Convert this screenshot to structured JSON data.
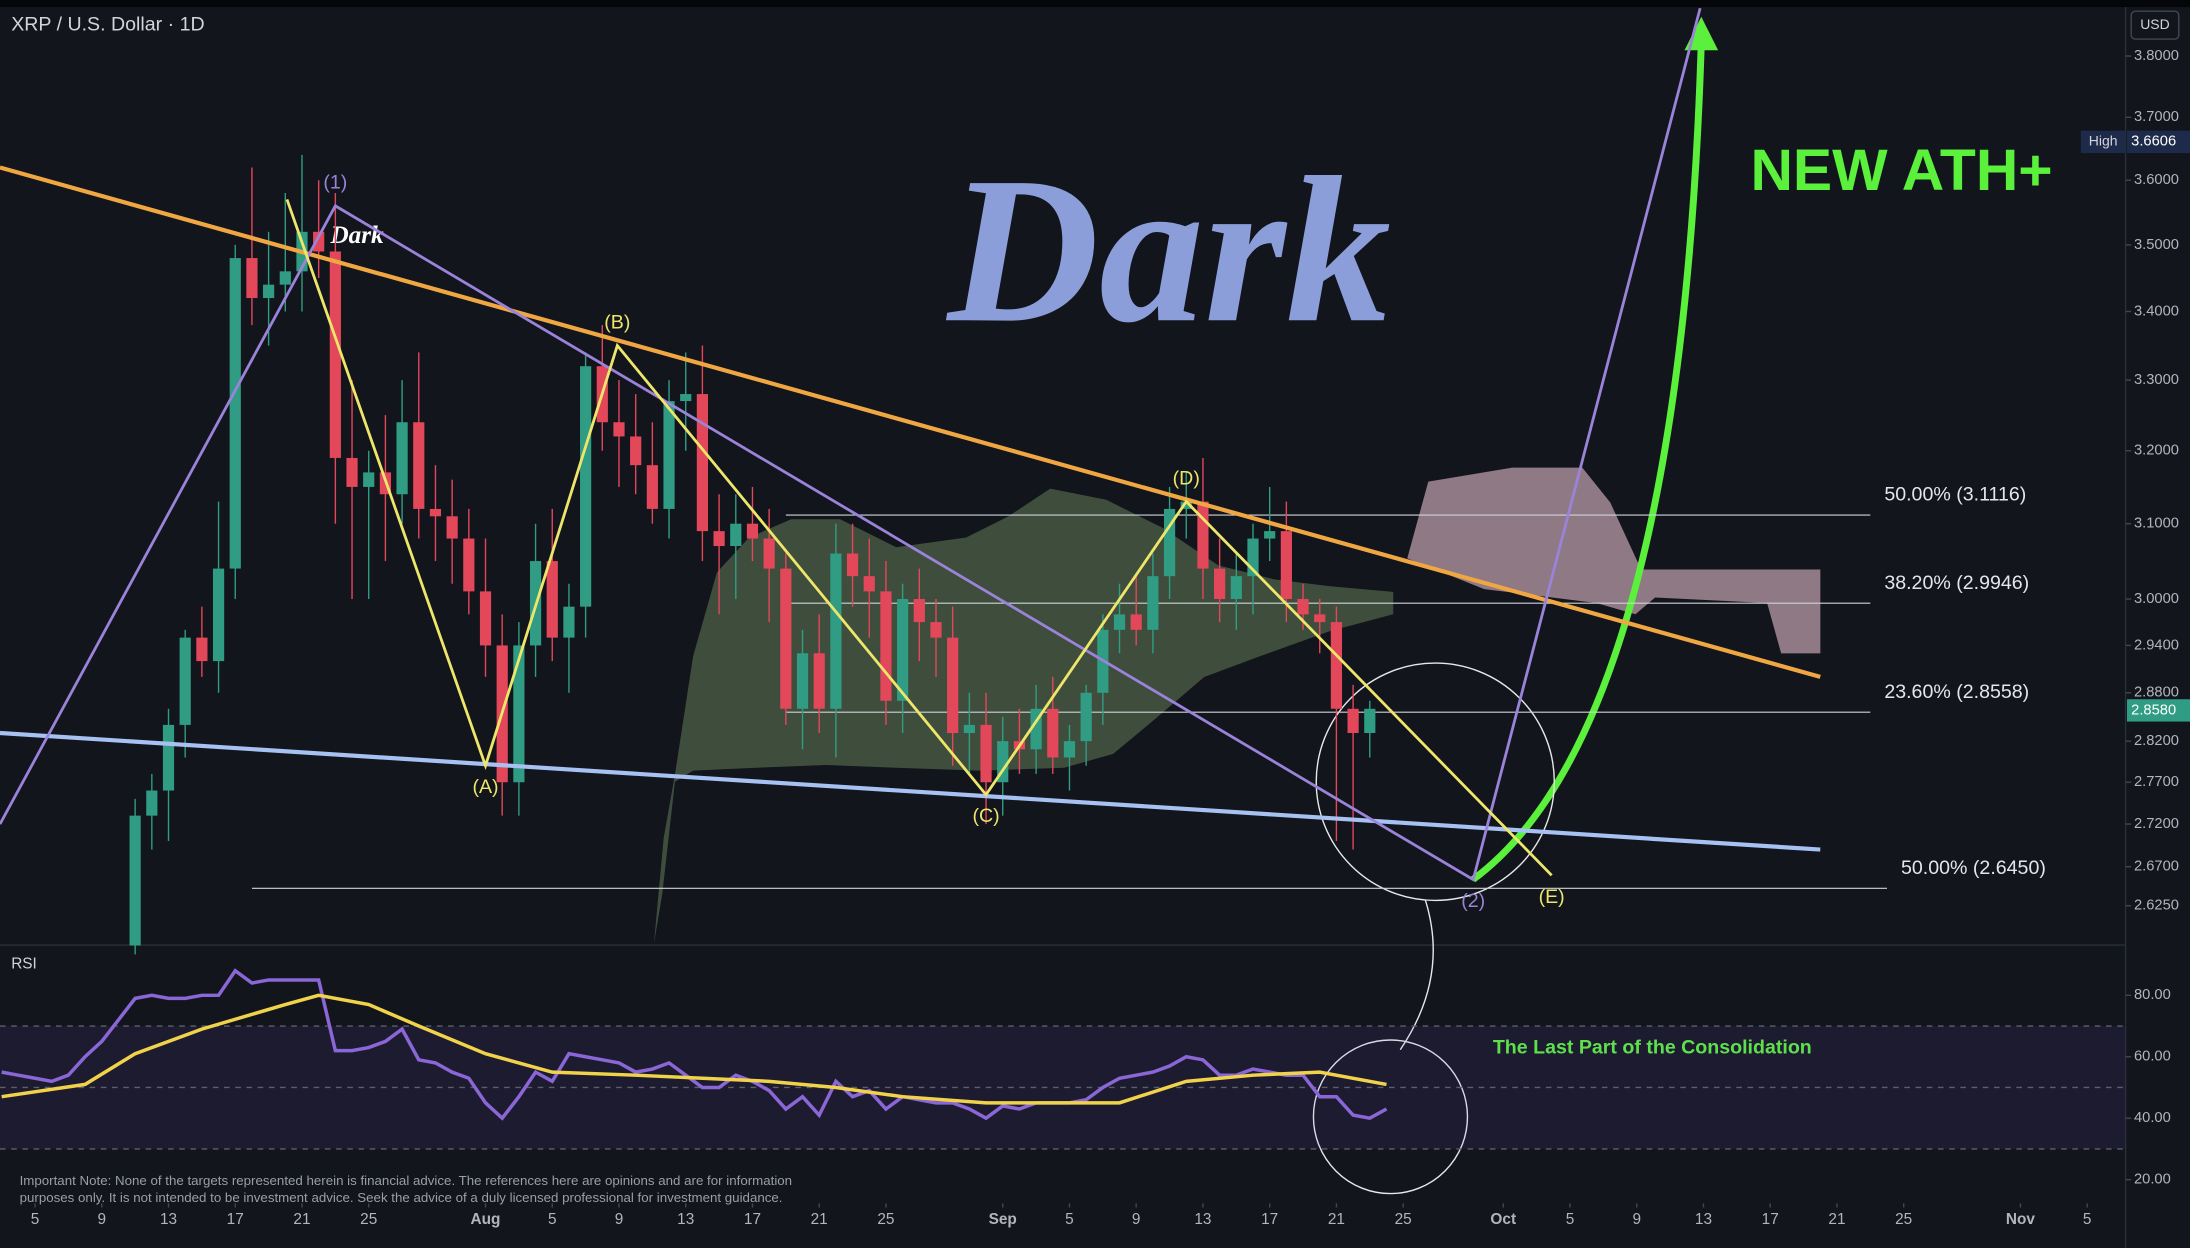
{
  "chart_data": [
    {
      "type": "candlestick",
      "title": "XRP / U.S. Dollar · 1D",
      "currency": "USD",
      "log_scale": true,
      "up_color": "#2f9c83",
      "down_color": "#e2475a",
      "x": [
        6,
        7,
        8,
        9,
        10,
        11,
        12,
        13,
        14,
        15,
        16,
        17,
        18,
        19,
        20,
        21,
        22,
        23,
        24,
        25,
        26,
        27,
        28,
        29,
        30,
        31,
        32,
        33,
        34,
        35,
        36,
        37,
        38,
        39,
        40,
        41,
        42,
        43,
        44,
        45,
        46,
        47,
        48,
        49,
        50,
        51,
        52,
        53,
        54,
        55,
        56,
        57,
        58,
        59,
        60,
        61,
        62,
        63,
        64,
        65,
        66,
        67,
        68,
        69,
        70,
        71,
        72,
        73,
        74,
        75,
        76,
        77,
        78,
        79,
        80
      ],
      "open": [
        2.58,
        2.73,
        2.76,
        2.84,
        2.95,
        2.92,
        3.04,
        3.48,
        3.42,
        3.44,
        3.46,
        3.52,
        3.49,
        3.19,
        3.15,
        3.17,
        3.14,
        3.24,
        3.12,
        3.11,
        3.08,
        3.01,
        2.94,
        2.77,
        2.94,
        3.05,
        2.95,
        2.99,
        3.32,
        3.24,
        3.22,
        3.18,
        3.12,
        3.27,
        3.28,
        3.09,
        3.07,
        3.1,
        3.08,
        3.04,
        2.86,
        2.93,
        2.86,
        3.06,
        3.03,
        3.01,
        2.87,
        3.0,
        2.97,
        2.95,
        2.83,
        2.84,
        2.77,
        2.82,
        2.81,
        2.86,
        2.8,
        2.82,
        2.88,
        2.96,
        2.98,
        2.96,
        3.03,
        3.12,
        3.13,
        3.04,
        3.0,
        3.03,
        3.08,
        3.09,
        3.0,
        2.98,
        2.97,
        2.86,
        2.83
      ],
      "high": [
        2.75,
        2.78,
        2.86,
        2.96,
        2.99,
        3.13,
        3.5,
        3.62,
        3.52,
        3.58,
        3.64,
        3.6,
        3.58,
        3.3,
        3.2,
        3.25,
        3.3,
        3.34,
        3.18,
        3.16,
        3.12,
        3.08,
        2.98,
        2.97,
        3.1,
        3.12,
        3.02,
        3.34,
        3.38,
        3.3,
        3.28,
        3.24,
        3.3,
        3.34,
        3.35,
        3.14,
        3.14,
        3.15,
        3.12,
        3.06,
        2.96,
        2.98,
        3.1,
        3.1,
        3.08,
        3.05,
        3.02,
        3.04,
        3.0,
        2.99,
        2.88,
        2.88,
        2.85,
        2.86,
        2.89,
        2.9,
        2.84,
        2.89,
        2.98,
        3.02,
        3.03,
        3.06,
        3.15,
        3.17,
        3.19,
        3.08,
        3.06,
        3.1,
        3.15,
        3.13,
        3.02,
        3.0,
        2.99,
        2.89,
        2.87
      ],
      "low": [
        2.57,
        2.69,
        2.7,
        2.8,
        2.9,
        2.88,
        3.0,
        3.38,
        3.35,
        3.4,
        3.4,
        3.45,
        3.1,
        3.0,
        3.0,
        3.05,
        3.1,
        3.08,
        3.05,
        3.02,
        2.98,
        2.9,
        2.73,
        2.73,
        2.9,
        2.92,
        2.88,
        2.95,
        3.2,
        3.15,
        3.14,
        3.1,
        3.08,
        3.2,
        3.05,
        2.98,
        3.0,
        3.05,
        2.97,
        2.84,
        2.81,
        2.83,
        2.8,
        2.99,
        2.95,
        2.84,
        2.83,
        2.92,
        2.9,
        2.79,
        2.78,
        2.72,
        2.73,
        2.78,
        2.78,
        2.78,
        2.76,
        2.79,
        2.84,
        2.93,
        2.94,
        2.93,
        3.0,
        3.08,
        3.0,
        2.97,
        2.96,
        2.98,
        3.05,
        2.97,
        2.96,
        2.93,
        2.7,
        2.69,
        2.8
      ],
      "close": [
        2.73,
        2.76,
        2.84,
        2.95,
        2.92,
        3.04,
        3.48,
        3.42,
        3.44,
        3.46,
        3.52,
        3.49,
        3.19,
        3.15,
        3.17,
        3.14,
        3.24,
        3.12,
        3.11,
        3.08,
        3.01,
        2.94,
        2.77,
        2.94,
        3.05,
        2.95,
        2.99,
        3.32,
        3.24,
        3.22,
        3.18,
        3.12,
        3.27,
        3.28,
        3.09,
        3.07,
        3.1,
        3.08,
        3.04,
        2.86,
        2.93,
        2.86,
        3.06,
        3.03,
        3.01,
        2.87,
        3.0,
        2.97,
        2.95,
        2.83,
        2.84,
        2.77,
        2.82,
        2.81,
        2.86,
        2.8,
        2.82,
        2.88,
        2.96,
        2.98,
        2.96,
        3.03,
        3.12,
        3.13,
        3.04,
        3.0,
        3.03,
        3.08,
        3.09,
        3.0,
        2.98,
        2.97,
        2.86,
        2.83,
        2.86
      ],
      "xlim": [
        -2.1,
        125.3
      ],
      "xticks": [
        {
          "value": 0,
          "label": "5"
        },
        {
          "value": 4,
          "label": "9"
        },
        {
          "value": 8,
          "label": "13"
        },
        {
          "value": 12,
          "label": "17"
        },
        {
          "value": 16,
          "label": "21"
        },
        {
          "value": 20,
          "label": "25"
        },
        {
          "value": 27,
          "label": "Aug"
        },
        {
          "value": 31,
          "label": "5"
        },
        {
          "value": 35,
          "label": "9"
        },
        {
          "value": 39,
          "label": "13"
        },
        {
          "value": 43,
          "label": "17"
        },
        {
          "value": 47,
          "label": "21"
        },
        {
          "value": 51,
          "label": "25"
        },
        {
          "value": 58,
          "label": "Sep"
        },
        {
          "value": 62,
          "label": "5"
        },
        {
          "value": 66,
          "label": "9"
        },
        {
          "value": 70,
          "label": "13"
        },
        {
          "value": 74,
          "label": "17"
        },
        {
          "value": 78,
          "label": "21"
        },
        {
          "value": 82,
          "label": "25"
        },
        {
          "value": 88,
          "label": "Oct"
        },
        {
          "value": 92,
          "label": "5"
        },
        {
          "value": 96,
          "label": "9"
        },
        {
          "value": 100,
          "label": "13"
        },
        {
          "value": 104,
          "label": "17"
        },
        {
          "value": 108,
          "label": "21"
        },
        {
          "value": 112,
          "label": "25"
        },
        {
          "value": 119,
          "label": "Nov"
        },
        {
          "value": 123,
          "label": "5"
        }
      ],
      "ylim": [
        2.582,
        3.882
      ],
      "yticks": [
        {
          "value": 3.8,
          "label": "3.8000"
        },
        {
          "value": 3.7,
          "label": "3.7000"
        },
        {
          "value": 3.6,
          "label": "3.6000"
        },
        {
          "value": 3.5,
          "label": "3.5000"
        },
        {
          "value": 3.4,
          "label": "3.4000"
        },
        {
          "value": 3.3,
          "label": "3.3000"
        },
        {
          "value": 3.2,
          "label": "3.2000"
        },
        {
          "value": 3.1,
          "label": "3.1000"
        },
        {
          "value": 3.0,
          "label": "3.0000"
        },
        {
          "value": 2.94,
          "label": "2.9400"
        },
        {
          "value": 2.88,
          "label": "2.8800"
        },
        {
          "value": 2.82,
          "label": "2.8200"
        },
        {
          "value": 2.77,
          "label": "2.7700"
        },
        {
          "value": 2.72,
          "label": "2.7200"
        },
        {
          "value": 2.67,
          "label": "2.6700"
        },
        {
          "value": 2.625,
          "label": "2.6250"
        }
      ],
      "high_marker": {
        "label": "High",
        "value": 3.6606
      },
      "last_price": {
        "value": 2.858,
        "label": "2.8580"
      },
      "trendlines": [
        {
          "color": "#f0a742",
          "x": [
            -2.1,
            107
          ],
          "y": [
            3.62,
            2.9
          ]
        },
        {
          "color": "#a7c1f2",
          "x": [
            -2.1,
            107
          ],
          "y": [
            2.83,
            2.69
          ]
        }
      ],
      "waves": [
        {
          "color": "#9a83d9",
          "x": [
            -2.1,
            18,
            86.2,
            99.8
          ],
          "y": [
            2.72,
            3.56,
            2.655,
            3.88
          ],
          "labels": [
            null,
            "(1)",
            "(2)",
            null
          ]
        },
        {
          "color": "#ede66b",
          "x": [
            15.1,
            27,
            34.9,
            57,
            69,
            90.9
          ],
          "y": [
            3.57,
            2.79,
            3.35,
            2.755,
            3.13,
            2.66
          ],
          "labels": [
            null,
            "(A)",
            "(B)",
            "(C)",
            "(D)",
            "(E)"
          ]
        }
      ],
      "fib_levels": [
        {
          "value": 3.1116,
          "label": "50.00% (3.1116)",
          "x": [
            45,
            110
          ]
        },
        {
          "value": 2.9946,
          "label": "38.20% (2.9946)",
          "x": [
            45,
            110
          ]
        },
        {
          "value": 2.8558,
          "label": "23.60% (2.8558)",
          "x": [
            45,
            110
          ]
        },
        {
          "value": 2.645,
          "label": "50.00% (2.6450)",
          "x": [
            13,
            111
          ]
        }
      ],
      "annotations": {
        "watermark": "Dark",
        "signature": "Dark",
        "target": "NEW ATH+"
      }
    },
    {
      "type": "line",
      "title": "RSI",
      "series": [
        {
          "color": "#8a66d6",
          "x": [
            -2,
            -1,
            0,
            1,
            2,
            3,
            4,
            5,
            6,
            7,
            8,
            9,
            10,
            11,
            12,
            13,
            14,
            15,
            16,
            17,
            18,
            19,
            20,
            21,
            22,
            23,
            24,
            25,
            26,
            27,
            28,
            29,
            30,
            31,
            32,
            33,
            34,
            35,
            36,
            37,
            38,
            39,
            40,
            41,
            42,
            43,
            44,
            45,
            46,
            47,
            48,
            49,
            50,
            51,
            52,
            53,
            54,
            55,
            56,
            57,
            58,
            59,
            60,
            61,
            62,
            63,
            64,
            65,
            66,
            67,
            68,
            69,
            70,
            71,
            72,
            73,
            74,
            75,
            76,
            77,
            78,
            79,
            80,
            81
          ],
          "values": [
            55,
            54,
            53,
            52,
            54,
            60,
            65,
            72,
            79,
            80,
            79,
            79,
            80,
            80,
            88,
            84,
            85,
            85,
            85,
            85,
            62,
            62,
            63,
            65,
            69,
            59,
            58,
            55,
            53,
            45,
            40,
            47,
            55,
            52,
            61,
            60,
            59,
            58,
            55,
            56,
            58,
            54,
            50,
            50,
            54,
            52,
            49,
            43,
            47,
            41,
            52,
            47,
            49,
            43,
            47,
            46,
            45,
            45,
            43,
            40,
            44,
            43,
            45,
            45,
            45,
            46,
            50,
            53,
            54,
            55,
            57,
            60,
            59,
            54,
            54,
            56,
            55,
            54,
            54,
            47,
            47,
            41,
            40,
            43
          ]
        },
        {
          "color": "#f0d34a",
          "x": [
            -2,
            3,
            6,
            10,
            15,
            17,
            20,
            23,
            27,
            31,
            36,
            40,
            44,
            48,
            52,
            57,
            61,
            65,
            69,
            73,
            77,
            81
          ],
          "values": [
            47,
            51,
            61,
            69,
            77,
            80,
            77,
            70,
            61,
            55,
            54,
            53,
            52,
            50,
            47,
            45,
            45,
            45,
            52,
            54,
            55,
            51
          ]
        }
      ],
      "ylim": [
        13.2,
        95.9
      ],
      "yticks": [
        {
          "value": 80,
          "label": "80.00"
        },
        {
          "value": 60,
          "label": "60.00"
        },
        {
          "value": 40,
          "label": "40.00"
        },
        {
          "value": 20,
          "label": "20.00"
        }
      ],
      "levels": [
        70,
        50,
        30
      ],
      "annotation": "The Last Part of the Consolidation"
    }
  ],
  "disclaimer": "Important Note: None of the targets represented herein is financial advice. The references here are opinions and are for information purposes only. It is not intended to be investment advice. Seek the advice of a duly licensed professional for investment guidance."
}
